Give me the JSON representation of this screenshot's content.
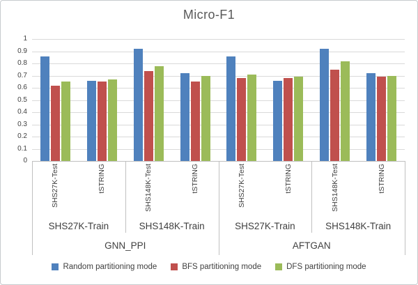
{
  "chart_data": {
    "type": "bar",
    "title": "Micro-F1",
    "xlabel": "",
    "ylabel": "",
    "ylim": [
      0,
      1
    ],
    "y_tick_step": 0.1,
    "y_ticks": [
      "1",
      "0.9",
      "0.8",
      "0.7",
      "0.6",
      "0.5",
      "0.4",
      "0.3",
      "0.2",
      "0.1",
      "0"
    ],
    "grid": true,
    "legend_position": "bottom",
    "clusters": [
      {
        "model": "GNN_PPI",
        "train": "SHS27K-Train",
        "test": "SHS27K-Test"
      },
      {
        "model": "GNN_PPI",
        "train": "SHS27K-Train",
        "test": "tSTRING"
      },
      {
        "model": "GNN_PPI",
        "train": "SHS148K-Train",
        "test": "SHS148K-Test"
      },
      {
        "model": "GNN_PPI",
        "train": "SHS148K-Train",
        "test": "tSTRING"
      },
      {
        "model": "AFTGAN",
        "train": "SHS27K-Train",
        "test": "SHS27K-Test"
      },
      {
        "model": "AFTGAN",
        "train": "SHS27K-Train",
        "test": "tSTRING"
      },
      {
        "model": "AFTGAN",
        "train": "SHS148K-Train",
        "test": "SHS148K-Test"
      },
      {
        "model": "AFTGAN",
        "train": "SHS148K-Train",
        "test": "tSTRING"
      }
    ],
    "x_axis_levels": {
      "level1_test": [
        "SHS27K-Test",
        "tSTRING",
        "SHS148K-Test",
        "tSTRING",
        "SHS27K-Test",
        "tSTRING",
        "SHS148K-Test",
        "tSTRING"
      ],
      "level2_train": [
        "SHS27K-Train",
        "SHS148K-Train",
        "SHS27K-Train",
        "SHS148K-Train"
      ],
      "level3_model": [
        "GNN_PPI",
        "AFTGAN"
      ]
    },
    "series": [
      {
        "name": "Random partitioning mode",
        "color": "#4F81BD",
        "values": [
          0.86,
          0.66,
          0.92,
          0.72,
          0.86,
          0.66,
          0.92,
          0.72
        ]
      },
      {
        "name": "BFS partitioning mode",
        "color": "#C0504D",
        "values": [
          0.62,
          0.65,
          0.74,
          0.65,
          0.68,
          0.68,
          0.75,
          0.69
        ]
      },
      {
        "name": "DFS partitioning mode",
        "color": "#9BBB59",
        "values": [
          0.65,
          0.67,
          0.78,
          0.7,
          0.71,
          0.69,
          0.82,
          0.7
        ]
      }
    ],
    "colors": {
      "grid": "#D9D9D9",
      "axis_line": "#C0C0C0",
      "axis_text": "#3F3F3F",
      "title_text": "#595959"
    }
  }
}
